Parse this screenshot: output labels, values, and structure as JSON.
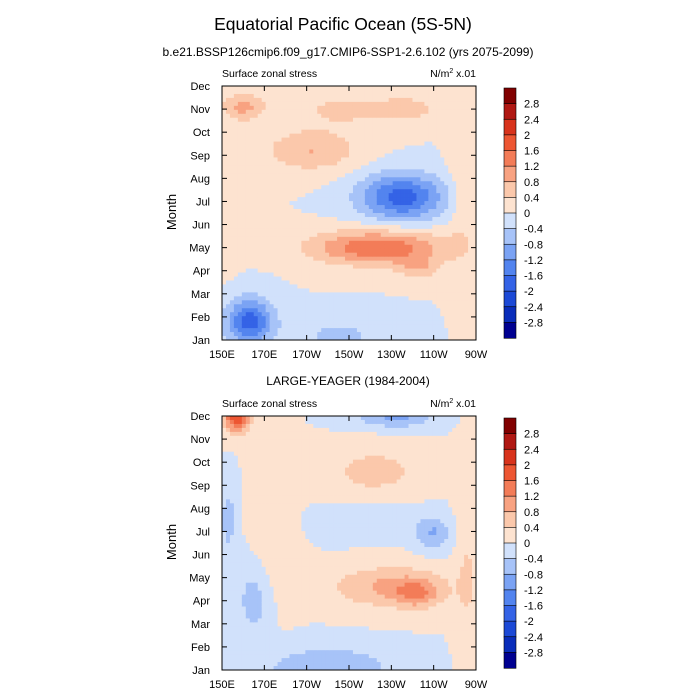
{
  "figure": {
    "title": "Equatorial Pacific Ocean (5S-5N)",
    "panel_titles": [
      "b.e21.BSSP126cmip6.f09_g17.CMIP6-SSP1-2.6.102 (yrs 2075-2099)",
      "LARGE-YEAGER (1984-2004)"
    ]
  },
  "chart_data": [
    {
      "type": "heatmap",
      "variable_label": "Surface zonal stress",
      "units_label": "N/m",
      "units_sup": "2",
      "units_scale": " x.01",
      "ylabel": "Month",
      "x_ticks": [
        "150E",
        "170E",
        "170W",
        "150W",
        "130W",
        "110W",
        "90W"
      ],
      "y_ticks": [
        "Jan",
        "Feb",
        "Mar",
        "Apr",
        "May",
        "Jun",
        "Jul",
        "Aug",
        "Sep",
        "Oct",
        "Nov",
        "Dec"
      ],
      "xlim_deg_east": [
        150,
        270
      ],
      "colorbar_levels": [
        "2.8",
        "2.4",
        "2",
        "1.6",
        "1.2",
        "0.8",
        "0.4",
        "0",
        "-0.4",
        "-0.8",
        "-1.2",
        "-1.6",
        "-2",
        "-2.4",
        "-2.8"
      ],
      "field_features": [
        {
          "lon": 192,
          "month": 9.2,
          "value": 0.8,
          "sx": 22,
          "sy": 0.9
        },
        {
          "lon": 160,
          "month": 11.1,
          "value": 0.9,
          "sx": 10,
          "sy": 0.6
        },
        {
          "lon": 210,
          "month": 11.0,
          "value": 0.5,
          "sx": 30,
          "sy": 0.8
        },
        {
          "lon": 240,
          "month": 11.0,
          "value": 0.4,
          "sx": 14,
          "sy": 0.6
        },
        {
          "lon": 235,
          "month": 7.2,
          "value": -1.8,
          "sx": 20,
          "sy": 1.0
        },
        {
          "lon": 224,
          "month": 5.0,
          "value": 1.55,
          "sx": 32,
          "sy": 0.75
        },
        {
          "lon": 243,
          "month": 4.1,
          "value": 0.6,
          "sx": 10,
          "sy": 0.5
        },
        {
          "lon": 163,
          "month": 1.8,
          "value": -1.8,
          "sx": 11,
          "sy": 1.0
        },
        {
          "lon": 205,
          "month": 1.2,
          "value": -0.5,
          "sx": 22,
          "sy": 0.8
        },
        {
          "lon": 263,
          "month": 7.5,
          "value": 0.35,
          "sx": 6,
          "sy": 3.0
        },
        {
          "lon": 150,
          "month": 7.0,
          "value": 0.3,
          "sx": 8,
          "sy": 2.5
        }
      ]
    },
    {
      "type": "heatmap",
      "variable_label": "Surface zonal stress",
      "units_label": "N/m",
      "units_sup": "2",
      "units_scale": " x.01",
      "ylabel": "Month",
      "x_ticks": [
        "150E",
        "170E",
        "170W",
        "150W",
        "130W",
        "110W",
        "90W"
      ],
      "y_ticks": [
        "Jan",
        "Feb",
        "Mar",
        "Apr",
        "May",
        "Jun",
        "Jul",
        "Aug",
        "Sep",
        "Oct",
        "Nov",
        "Dec"
      ],
      "xlim_deg_east": [
        150,
        270
      ],
      "colorbar_levels": [
        "2.8",
        "2.4",
        "2",
        "1.6",
        "1.2",
        "0.8",
        "0.4",
        "0",
        "-0.4",
        "-0.8",
        "-1.2",
        "-1.6",
        "-2",
        "-2.4",
        "-2.8"
      ],
      "field_features": [
        {
          "lon": 157,
          "month": 12.0,
          "value": 2.0,
          "sx": 6,
          "sy": 0.7
        },
        {
          "lon": 222,
          "month": 9.6,
          "value": 0.6,
          "sx": 22,
          "sy": 1.0
        },
        {
          "lon": 230,
          "month": 4.6,
          "value": 0.9,
          "sx": 28,
          "sy": 0.9
        },
        {
          "lon": 242,
          "month": 4.3,
          "value": 0.8,
          "sx": 10,
          "sy": 0.6
        },
        {
          "lon": 175,
          "month": 7.0,
          "value": 0.3,
          "sx": 10,
          "sy": 3.0
        },
        {
          "lon": 250,
          "month": 6.9,
          "value": -0.8,
          "sx": 8,
          "sy": 0.7
        },
        {
          "lon": 232,
          "month": 11.9,
          "value": -0.9,
          "sx": 18,
          "sy": 0.4
        },
        {
          "lon": 200,
          "month": 1.1,
          "value": -0.8,
          "sx": 30,
          "sy": 0.9
        },
        {
          "lon": 165,
          "month": 4.0,
          "value": -0.6,
          "sx": 8,
          "sy": 1.6
        },
        {
          "lon": 153,
          "month": 7.5,
          "value": -0.6,
          "sx": 4,
          "sy": 1.5
        },
        {
          "lon": 220,
          "month": 7.4,
          "value": -0.35,
          "sx": 25,
          "sy": 0.7
        },
        {
          "lon": 266,
          "month": 6.0,
          "value": 0.4,
          "sx": 5,
          "sy": 5.0
        }
      ]
    }
  ],
  "colors": {
    "contour_fill": [
      "#000090",
      "#0a2dba",
      "#1c49d6",
      "#3463e6",
      "#5384ef",
      "#7ba3f4",
      "#a7c3f8",
      "#d1e1fb",
      "#fde3d0",
      "#fbc8ab",
      "#f8a281",
      "#f37c58",
      "#ed5632",
      "#d8331c",
      "#b01813",
      "#800000"
    ]
  }
}
